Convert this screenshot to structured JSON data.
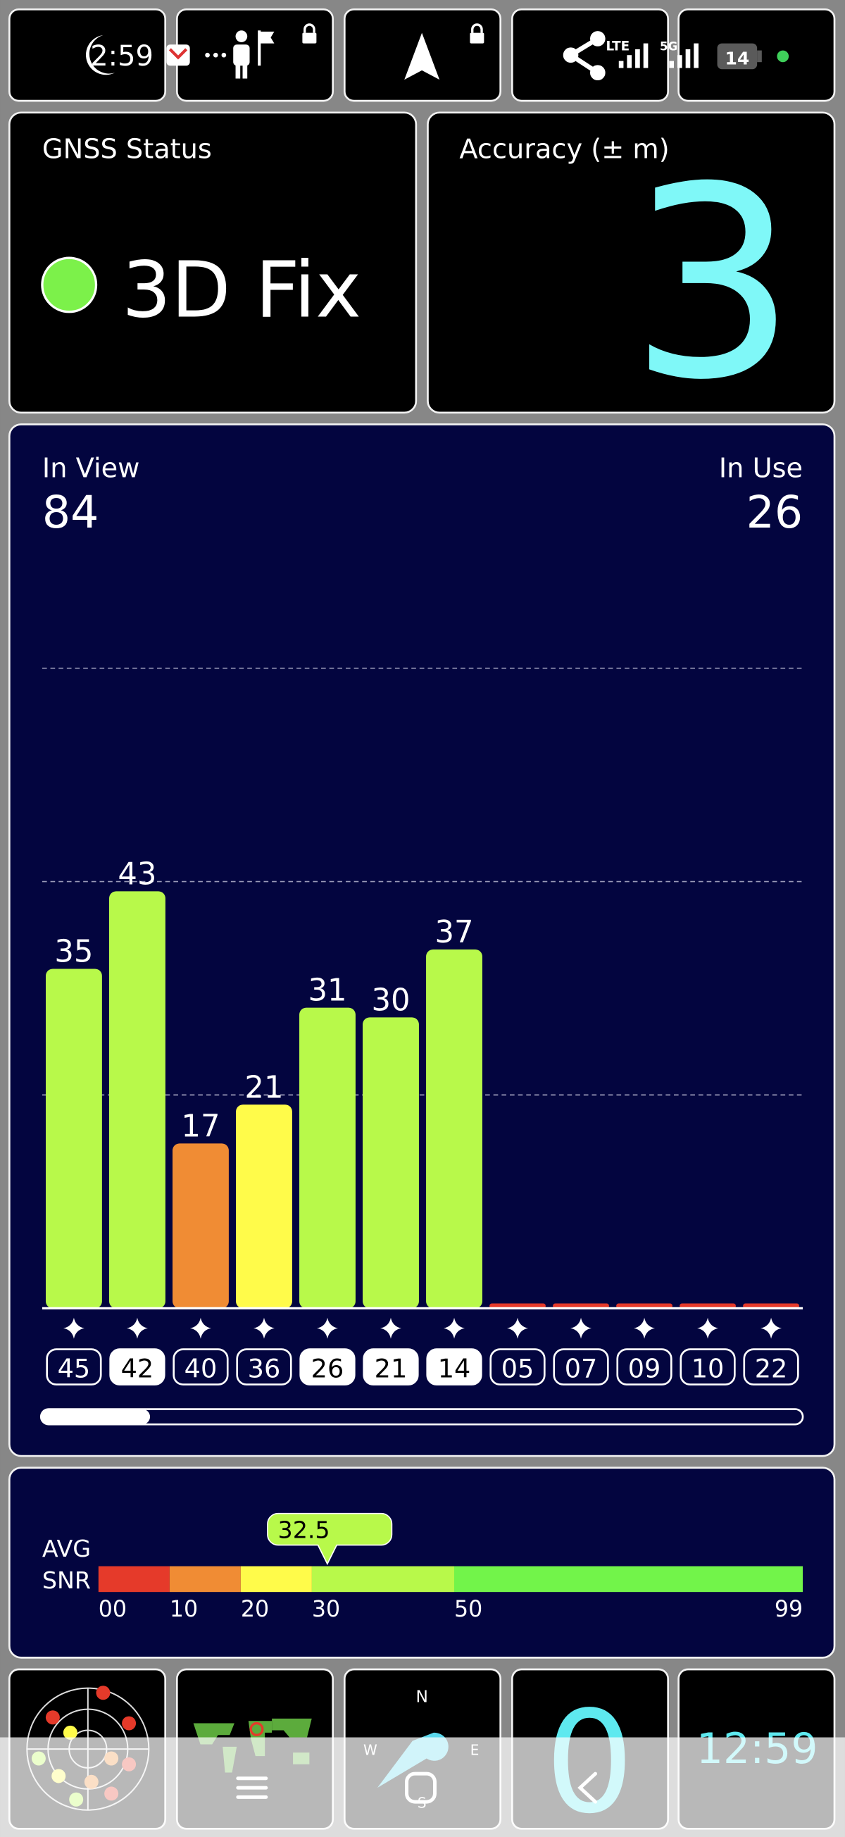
{
  "status_bar": {
    "time": "2:59",
    "lte": "LTE",
    "five_g": "5G",
    "battery": "14"
  },
  "gnss_status": {
    "title": "GNSS Status",
    "value": "3D Fix",
    "indicator_color": "#7cf14a"
  },
  "accuracy": {
    "title": "Accuracy (± m)",
    "value": 3,
    "color": "#7ff8f8"
  },
  "satellites": {
    "in_view_label": "In View",
    "in_view": 84,
    "in_use_label": "In Use",
    "in_use": 26,
    "snr_chart": {
      "type": "bar",
      "categories": [
        "45",
        "42",
        "40",
        "36",
        "26",
        "21",
        "14",
        "05",
        "07",
        "09",
        "10",
        "22"
      ],
      "in_use": [
        false,
        true,
        false,
        false,
        true,
        true,
        true,
        false,
        false,
        false,
        false,
        false
      ],
      "values": [
        35,
        43,
        17,
        21,
        31,
        30,
        37,
        0.5,
        0.5,
        0.5,
        0.5,
        0.5
      ],
      "labeled": [
        true,
        true,
        true,
        true,
        true,
        true,
        true,
        false,
        false,
        false,
        false,
        false
      ],
      "colors": [
        "#b8f94a",
        "#b8f94a",
        "#f08c34",
        "#fffb4a",
        "#b8f94a",
        "#b8f94a",
        "#b8f94a",
        "#e53a2a",
        "#e53a2a",
        "#e53a2a",
        "#e53a2a",
        "#e53a2a"
      ],
      "ylim": [
        0,
        66
      ],
      "yticks": [
        22,
        44,
        66
      ],
      "grid": true
    }
  },
  "avg_snr": {
    "label_lines": [
      "AVG",
      "SNR"
    ],
    "value": 32.5,
    "marker_color": "#b8f94a",
    "xlim": [
      0,
      99
    ],
    "ticks": [
      {
        "value": 0,
        "label": "00"
      },
      10,
      20,
      30,
      50,
      99
    ],
    "band_colors": [
      "#e53a2a",
      "#f08c34",
      "#fffb4a",
      "#b8f94a",
      "#72f44a"
    ]
  },
  "bottom_bar": {
    "compass": {
      "n": "N",
      "e": "E",
      "w": "W",
      "s": "S"
    },
    "speed": 0,
    "clock": "12:59"
  }
}
